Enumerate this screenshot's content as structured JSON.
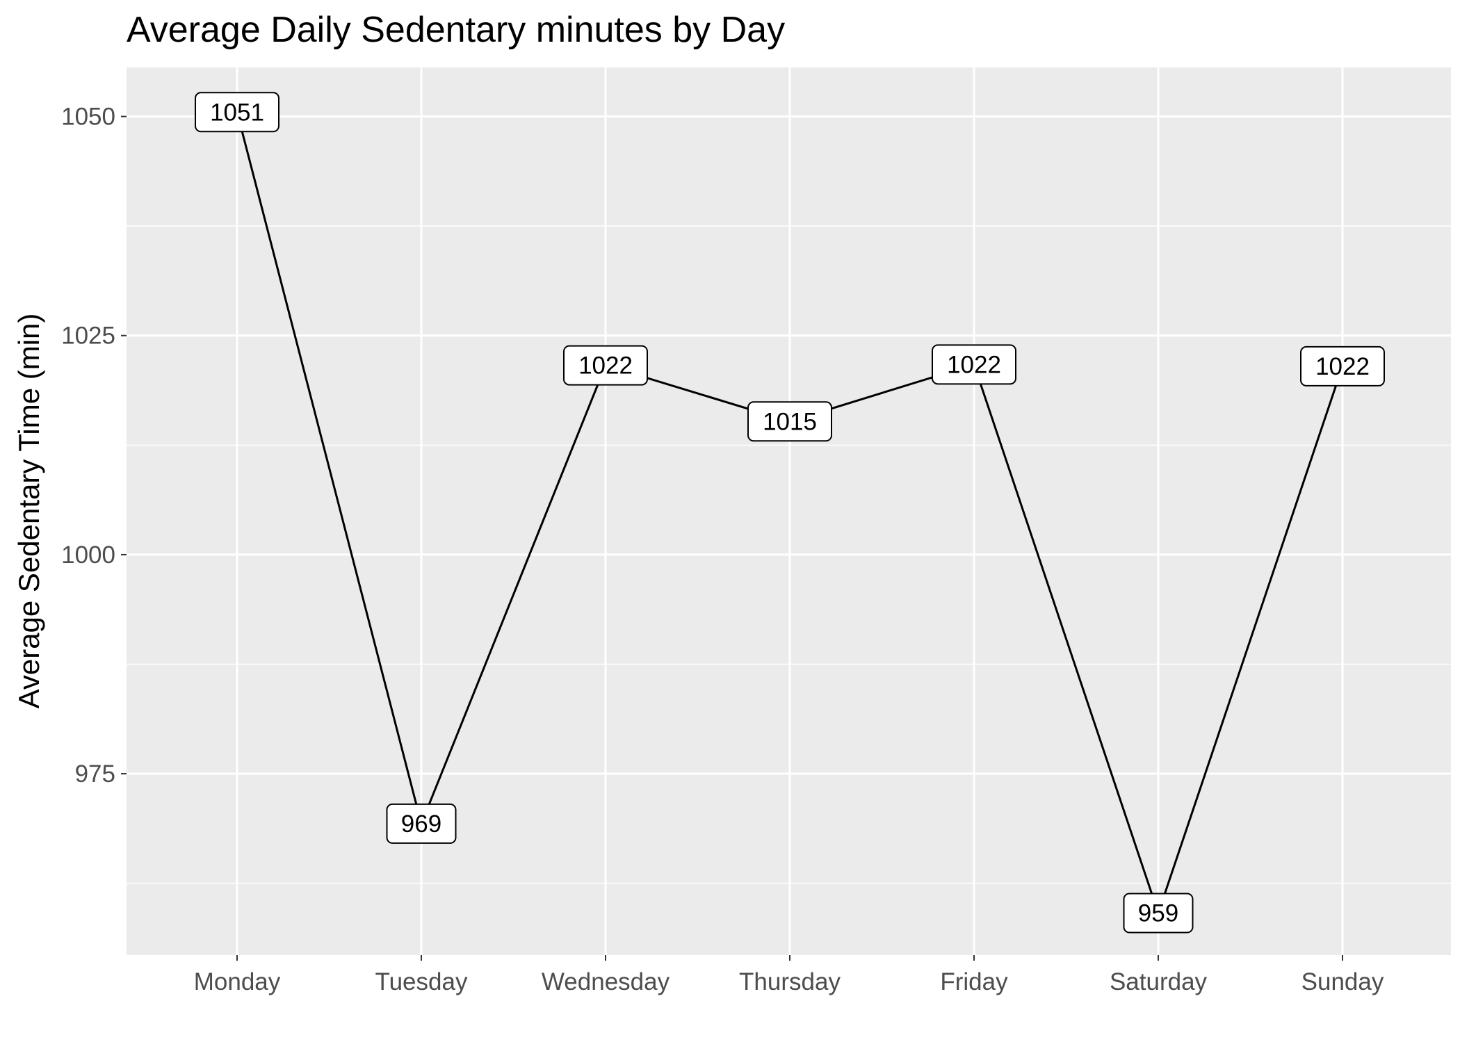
{
  "chart_data": {
    "type": "line",
    "title": "Average Daily Sedentary minutes by Day",
    "xlabel": "",
    "ylabel": "Average Sedentary Time (min)",
    "categories": [
      "Monday",
      "Tuesday",
      "Wednesday",
      "Thursday",
      "Friday",
      "Saturday",
      "Sunday"
    ],
    "series": [
      {
        "values": [
          1050.5,
          969.3,
          1021.6,
          1015.2,
          1021.7,
          959.1,
          1021.5
        ]
      }
    ],
    "data_labels": [
      "1051",
      "969",
      "1022",
      "1015",
      "1022",
      "959",
      "1022"
    ],
    "yticks": [
      "975",
      "1000",
      "1025",
      "1050"
    ],
    "ylim": [
      954.3,
      1055.6
    ],
    "grid": true,
    "legend": "none",
    "colors": {
      "panel_background": "#ebebeb",
      "grid": "#ffffff",
      "line": "#000000",
      "label_fill": "#ffffff",
      "label_border": "#000000",
      "tick_text": "#4d4d4d"
    }
  }
}
